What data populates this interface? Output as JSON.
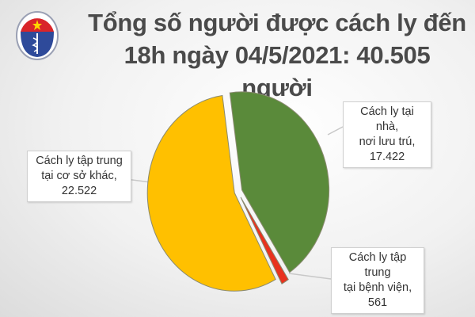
{
  "logo_text": "BỘ Y TẾ — MINISTRY OF HEALTH",
  "title_line1": "Tổng số người được cách ly đến",
  "title_line2": "18h ngày 04/5/2021: 40.505 người",
  "chart_data": {
    "type": "pie",
    "title": "Tổng số người được cách ly đến 18h ngày 04/5/2021: 40.505 người",
    "total": 40505,
    "slices": [
      {
        "label_line1": "Cách ly tại nhà,",
        "label_line2": "nơi lưu trú,",
        "value_text": "17.422",
        "value": 17422,
        "color": "#5a8a3a"
      },
      {
        "label_line1": "Cách ly tập trung",
        "label_line2": "tại bệnh viện,",
        "value_text": "561",
        "value": 561,
        "color": "#e8321e"
      },
      {
        "label_line1": "Cách ly tập trung",
        "label_line2": "tại cơ sở khác,",
        "value_text": "22.522",
        "value": 22522,
        "color": "#ffc000"
      }
    ],
    "legend": "callout labels"
  }
}
